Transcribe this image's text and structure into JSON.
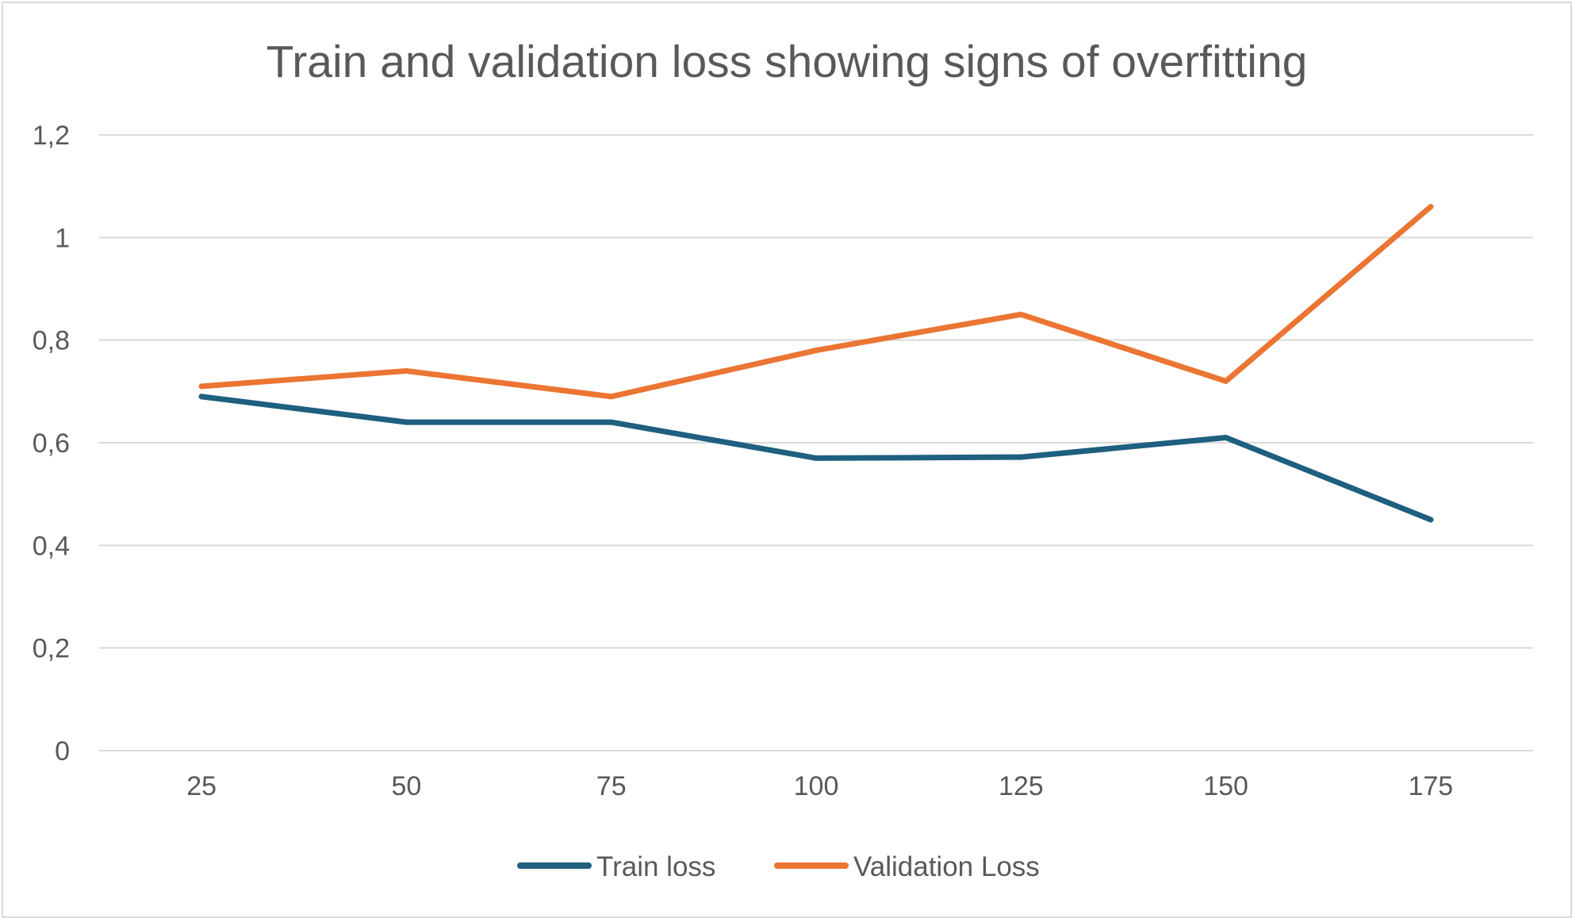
{
  "chart_data": {
    "type": "line",
    "title": "Train and validation loss showing signs of overfitting",
    "xlabel": "",
    "ylabel": "",
    "categories": [
      "25",
      "50",
      "75",
      "100",
      "125",
      "150",
      "175"
    ],
    "y_tick_labels": [
      "0",
      "0,2",
      "0,4",
      "0,6",
      "0,8",
      "1",
      "1,2"
    ],
    "y_ticks": [
      0,
      0.2,
      0.4,
      0.6,
      0.8,
      1.0,
      1.2
    ],
    "ylim": [
      0,
      1.2
    ],
    "grid": true,
    "legend_position": "bottom",
    "series": [
      {
        "name": "Train loss",
        "color": "#1f5f7f",
        "values": [
          0.69,
          0.64,
          0.64,
          0.57,
          0.572,
          0.61,
          0.45
        ]
      },
      {
        "name": "Validation Loss",
        "color": "#eb7533",
        "values": [
          0.71,
          0.74,
          0.69,
          0.78,
          0.85,
          0.72,
          1.06
        ]
      }
    ]
  }
}
